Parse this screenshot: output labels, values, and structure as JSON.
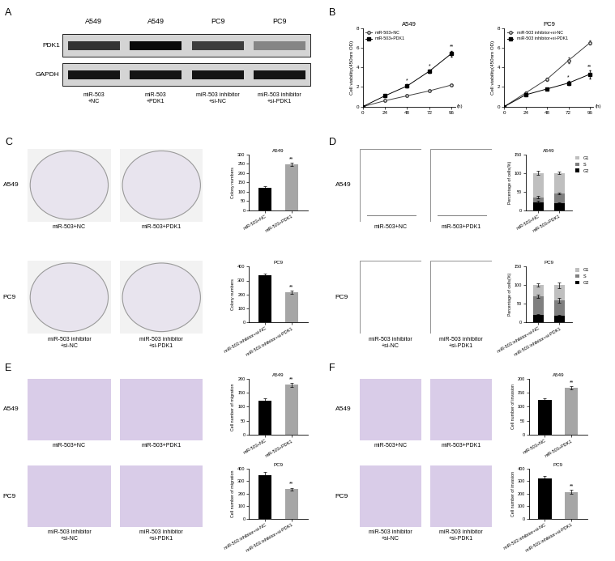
{
  "panel_labels": [
    "A",
    "B",
    "C",
    "D",
    "E",
    "F"
  ],
  "blot": {
    "cells": [
      "A549",
      "A549",
      "PC9",
      "PC9"
    ],
    "bands": [
      "PDK1",
      "GAPDH"
    ],
    "intensity": [
      [
        0.75,
        0.95,
        0.7,
        0.35
      ],
      [
        0.9,
        0.9,
        0.9,
        0.9
      ]
    ],
    "conditions": [
      "miR-503\n+NC",
      "miR-503\n+PDK1",
      "miR-503 inhibitor\n+si-NC",
      "miR-503 inhibitor\n+si-PDK1"
    ]
  },
  "images": {
    "C": [
      {
        "cell": "A549",
        "labels": [
          "miR-503+NC",
          "miR-503+PDK1"
        ]
      },
      {
        "cell": "PC9",
        "labels": [
          "miR-503 inhibitor\n+si-NC",
          "miR-503 inhibitor\n+si-PDK1"
        ]
      }
    ],
    "D": [
      {
        "cell": "A549",
        "labels": [
          "miR-503+NC",
          "miR-503+PDK1"
        ]
      },
      {
        "cell": "PC9",
        "labels": [
          "miR-503 inhibitor\n+si-NC",
          "miR-503 inhibitor\n+si-PDK1"
        ]
      }
    ],
    "E": [
      {
        "cell": "A549",
        "labels": [
          "miR-503+NC",
          "miR-503+PDK1"
        ]
      },
      {
        "cell": "PC9",
        "labels": [
          "miR-503 inhibitor\n+si-NC",
          "miR-503 inhibitor\n+si-PDK1"
        ]
      }
    ],
    "F": [
      {
        "cell": "A549",
        "labels": [
          "miR-503+NC",
          "miR-503+PDK1"
        ]
      },
      {
        "cell": "PC9",
        "labels": [
          "miR-503 inhibitor\n+si-NC",
          "miR-503 inhibitor\n+si-PDK1"
        ]
      }
    ]
  },
  "chart_data": [
    {
      "type": "line",
      "title": "A549",
      "y_label": "Cell viability(450nm OD)",
      "x_label": "(h)",
      "x": [
        0,
        24,
        48,
        72,
        96
      ],
      "xlim": [
        0,
        100
      ],
      "xticks": [
        0,
        24,
        48,
        72,
        96
      ],
      "ylim": [
        0,
        8
      ],
      "yticks": [
        0,
        2,
        4,
        6,
        8
      ],
      "legend": "upper left",
      "series": [
        {
          "name": "miR-503+NC",
          "color": "#404040",
          "marker": "open_circle",
          "values": [
            0,
            0.6,
            1.1,
            1.6,
            2.2
          ],
          "errors": [
            0,
            0.05,
            0.08,
            0.1,
            0.12
          ]
        },
        {
          "name": "miR-503+PDK1",
          "color": "#000000",
          "marker": "square",
          "values": [
            0,
            1.1,
            2.1,
            3.6,
            5.4
          ],
          "errors": [
            0,
            0.1,
            0.15,
            0.2,
            0.3
          ]
        }
      ],
      "annotations": [
        {
          "series": 1,
          "x": 48,
          "text": "*"
        },
        {
          "series": 1,
          "x": 72,
          "text": "*"
        },
        {
          "series": 1,
          "x": 96,
          "text": "**"
        }
      ]
    },
    {
      "type": "line",
      "title": "PC9",
      "y_label": "Cell viability(450nm OD)",
      "x_label": "(h)",
      "x": [
        0,
        24,
        48,
        72,
        96
      ],
      "xlim": [
        0,
        100
      ],
      "xticks": [
        0,
        24,
        48,
        72,
        96
      ],
      "ylim": [
        0,
        8
      ],
      "yticks": [
        0,
        2,
        4,
        6,
        8
      ],
      "legend": "upper left",
      "series": [
        {
          "name": "miR-503 inhibitor+si-NC",
          "color": "#404040",
          "marker": "open_circle",
          "values": [
            0,
            1.4,
            2.8,
            4.7,
            6.5
          ],
          "errors": [
            0,
            0.1,
            0.15,
            0.3,
            0.2
          ]
        },
        {
          "name": "miR-503 inhibitor+si-PDK1",
          "color": "#000000",
          "marker": "square",
          "values": [
            0,
            1.2,
            1.8,
            2.4,
            3.3
          ],
          "errors": [
            0,
            0.1,
            0.1,
            0.2,
            0.4
          ]
        }
      ],
      "annotations": [
        {
          "series": 1,
          "x": 72,
          "text": "*"
        },
        {
          "series": 1,
          "x": 96,
          "text": "**"
        }
      ]
    },
    {
      "type": "bar",
      "title": "A549",
      "y_label": "Colony numbers",
      "categories": [
        "miR-503+NC",
        "miR-503+PDK1"
      ],
      "values": [
        120,
        245
      ],
      "errors": [
        8,
        8
      ],
      "colors": [
        "#000000",
        "#a6a6a6"
      ],
      "ylim": [
        0,
        300
      ],
      "yticks": [
        0,
        50,
        100,
        150,
        200,
        250,
        300
      ],
      "annotations": [
        {
          "category": 1,
          "text": "**"
        }
      ]
    },
    {
      "type": "bar",
      "title": "PC9",
      "y_label": "Colony numbers",
      "categories": [
        "miR-503 inhibitor+si-NC",
        "miR-503 inhibitor+si-PDK1"
      ],
      "values": [
        335,
        215
      ],
      "errors": [
        15,
        10
      ],
      "colors": [
        "#000000",
        "#a6a6a6"
      ],
      "ylim": [
        0,
        400
      ],
      "yticks": [
        0,
        100,
        200,
        300,
        400
      ],
      "annotations": [
        {
          "category": 1,
          "text": "**"
        }
      ]
    },
    {
      "type": "bar",
      "stacked": true,
      "title": "A549",
      "y_label": "Percentage of cells(%)",
      "categories": [
        "miR-503+NC",
        "miR-503+PDK1"
      ],
      "ylim": [
        0,
        150
      ],
      "yticks": [
        0,
        50,
        100,
        150
      ],
      "legend": "right",
      "series": [
        {
          "name": "G2",
          "color": "#000000",
          "values": [
            22,
            20
          ],
          "errors": [
            3,
            2
          ]
        },
        {
          "name": "S",
          "color": "#7f7f7f",
          "values": [
            13,
            25
          ],
          "errors": [
            3,
            3
          ]
        },
        {
          "name": "G1",
          "color": "#bfbfbf",
          "values": [
            65,
            55
          ],
          "errors": [
            5,
            3
          ]
        }
      ]
    },
    {
      "type": "bar",
      "stacked": true,
      "title": "PC9",
      "y_label": "Percentage of cells(%)",
      "categories": [
        "miR-503 inhibitor+si-NC",
        "miR-503 inhibitor+si-PDK1"
      ],
      "ylim": [
        0,
        150
      ],
      "yticks": [
        0,
        50,
        100,
        150
      ],
      "legend": "right",
      "series": [
        {
          "name": "G2",
          "color": "#000000",
          "values": [
            20,
            18
          ],
          "errors": [
            2,
            3
          ]
        },
        {
          "name": "S",
          "color": "#7f7f7f",
          "values": [
            50,
            42
          ],
          "errors": [
            5,
            6
          ]
        },
        {
          "name": "G1",
          "color": "#bfbfbf",
          "values": [
            30,
            40
          ],
          "errors": [
            4,
            8
          ]
        }
      ]
    },
    {
      "type": "bar",
      "title": "A549",
      "y_label": "Cell number of migration",
      "categories": [
        "miR-503+NC",
        "miR-503+PDK1"
      ],
      "values": [
        122,
        178
      ],
      "errors": [
        7,
        8
      ],
      "colors": [
        "#000000",
        "#a6a6a6"
      ],
      "ylim": [
        0,
        200
      ],
      "yticks": [
        0,
        50,
        100,
        150,
        200
      ],
      "annotations": [
        {
          "category": 1,
          "text": "**"
        }
      ]
    },
    {
      "type": "bar",
      "title": "PC9",
      "y_label": "Cell number of migration",
      "categories": [
        "miR-503 inhibitor+si-NC",
        "miR-503 inhibitor+si-PDK1"
      ],
      "values": [
        345,
        235
      ],
      "errors": [
        25,
        12
      ],
      "colors": [
        "#000000",
        "#a6a6a6"
      ],
      "ylim": [
        0,
        400
      ],
      "yticks": [
        0,
        100,
        200,
        300,
        400
      ],
      "annotations": [
        {
          "category": 1,
          "text": "**"
        }
      ]
    },
    {
      "type": "bar",
      "title": "A549",
      "y_label": "Cell number of invasion",
      "categories": [
        "miR-503+NC",
        "miR-503+PDK1"
      ],
      "values": [
        125,
        168
      ],
      "errors": [
        5,
        6
      ],
      "colors": [
        "#000000",
        "#a6a6a6"
      ],
      "ylim": [
        0,
        200
      ],
      "yticks": [
        0,
        50,
        100,
        150,
        200
      ],
      "annotations": [
        {
          "category": 1,
          "text": "**"
        }
      ]
    },
    {
      "type": "bar",
      "title": "PC9",
      "y_label": "Cell number of invasion",
      "categories": [
        "miR-503 inhibitor+si-NC",
        "miR-503 inhibitor+si-PDK1"
      ],
      "values": [
        320,
        215
      ],
      "errors": [
        22,
        14
      ],
      "colors": [
        "#000000",
        "#a6a6a6"
      ],
      "ylim": [
        0,
        400
      ],
      "yticks": [
        0,
        100,
        200,
        300,
        400
      ],
      "annotations": [
        {
          "category": 1,
          "text": "**"
        }
      ]
    }
  ]
}
